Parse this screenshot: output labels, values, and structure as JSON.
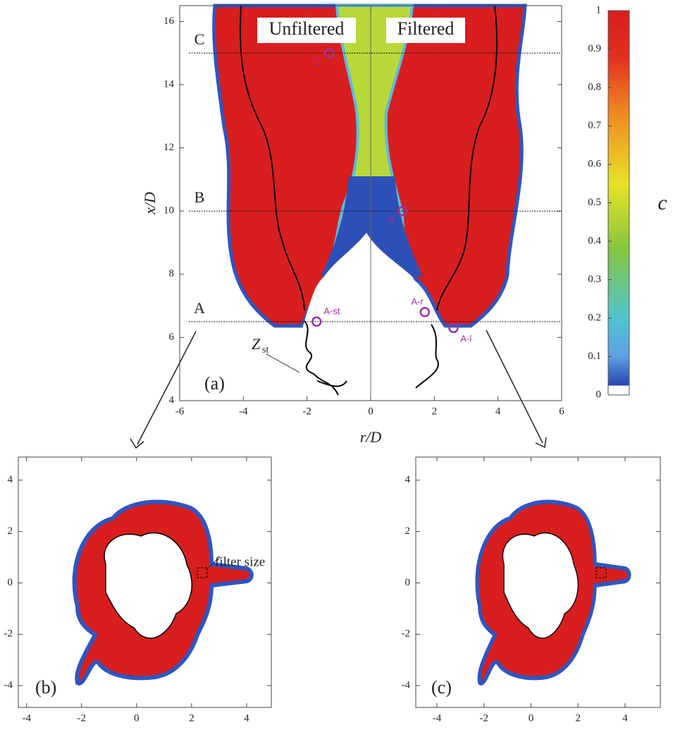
{
  "panel_a": {
    "label": "(a)",
    "xlabel": "r/D",
    "ylabel": "x/D",
    "xlim": [
      -6,
      6
    ],
    "ylim": [
      4,
      16.5
    ],
    "xticks": [
      -6,
      -4,
      -2,
      0,
      2,
      4,
      6
    ],
    "yticks": [
      4,
      6,
      8,
      10,
      12,
      14,
      16
    ],
    "titles": [
      "Unfiltered",
      "Filtered"
    ],
    "lines": [
      {
        "label": "A",
        "value": 6.5
      },
      {
        "label": "B",
        "value": 10
      },
      {
        "label": "C",
        "value": 15
      }
    ],
    "points": [
      {
        "label": "C",
        "r": -1.3,
        "x": 15
      },
      {
        "label": "B",
        "r": 1,
        "x": 10
      },
      {
        "label": "A-st",
        "r": -1.7,
        "x": 6.5
      },
      {
        "label": "A-r",
        "r": 1.7,
        "x": 6.8
      },
      {
        "label": "A-l",
        "r": 2.6,
        "x": 6.3
      }
    ],
    "annotation": {
      "symbol": "Z",
      "subscript": "st"
    }
  },
  "colorbar": {
    "label": "c",
    "lim": [
      0,
      1
    ],
    "ticks": [
      0,
      0.1,
      0.2,
      0.3,
      0.4,
      0.5,
      0.6,
      0.7,
      0.8,
      0.9,
      1
    ]
  },
  "panel_b": {
    "label": "(b)",
    "annotation": "filter size",
    "xlim": [
      -4.3,
      4.9
    ],
    "ylim": [
      -4.85,
      4.9
    ],
    "xticks": [
      -4,
      -2,
      0,
      2,
      4
    ],
    "yticks": [
      -4,
      -2,
      0,
      2,
      4
    ]
  },
  "panel_c": {
    "label": "(c)",
    "xlim": [
      -4.9,
      5.5
    ],
    "ylim": [
      -4.85,
      4.9
    ],
    "xticks": [
      -4,
      -2,
      0,
      2,
      4
    ],
    "yticks": [
      -4,
      -2,
      0,
      2,
      4
    ]
  }
}
